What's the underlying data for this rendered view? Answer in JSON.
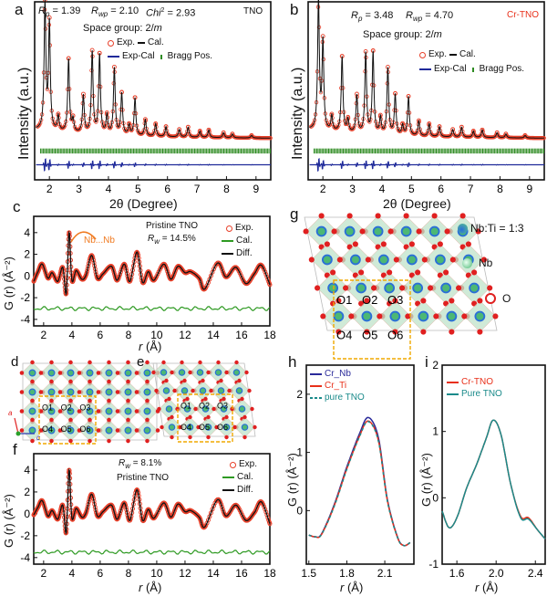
{
  "colors": {
    "exp": "#e8402a",
    "cal_black": "#111111",
    "diff_blue": "#1f2a9a",
    "bragg": "#2e8b22",
    "green": "#2e9a22",
    "cr_nb": "#2a2a9a",
    "cr_ti": "#e8301a",
    "pure": "#1a8a8a",
    "octa": "#bfe3c9",
    "oxygen": "#e02020",
    "box": "#f0a800"
  },
  "panels": {
    "a": {
      "label": "a",
      "rp": {
        "sym": "R",
        "sub": "p",
        "val": " = 1.39"
      },
      "rwp": {
        "sym": "R",
        "sub": "wp",
        "val": " = 2.10"
      },
      "chi": {
        "sym": "Chi",
        "sup": "2",
        "val": " = 2.93"
      },
      "sample": "TNO",
      "space_group": "Space group: 2/",
      "space_group_it": "m",
      "legend": [
        "Exp.",
        "Cal.",
        "Exp-Cal",
        "Bragg Pos."
      ],
      "ylabel": "Intensity (a.u.)",
      "xlabel": "2θ (Degree)"
    },
    "b": {
      "label": "b",
      "rp": {
        "sym": "R",
        "sub": "p",
        "val": " = 3.48"
      },
      "rwp": {
        "sym": "R",
        "sub": "wp",
        "val": " = 4.70"
      },
      "sample": "Cr-TNO",
      "space_group": "Space group: 2/",
      "space_group_it": "m",
      "legend": [
        "Exp.",
        "Cal.",
        "Exp-Cal",
        "Bragg Pos."
      ],
      "ylabel": "Intensity (a.u.)",
      "xlabel": "2θ (Degree)"
    },
    "c": {
      "label": "c",
      "title": "Pristine TNO",
      "rw": {
        "sym": "R",
        "sub": "w",
        "val": " = 14.5%"
      },
      "annotation": "Nb...Nb",
      "legend": [
        "Exp.",
        "Cal.",
        "Diff."
      ],
      "ylabel": "G (r) (Å⁻²)",
      "xlabel_it": "r",
      "xlabel": " (Å)"
    },
    "d": {
      "label": "d",
      "sites": [
        "O1",
        "O2",
        "O3",
        "O4",
        "O5",
        "O6"
      ],
      "axes": [
        "a",
        "c"
      ]
    },
    "e": {
      "label": "e",
      "sites": [
        "O1",
        "O2",
        "O3",
        "O4",
        "O5",
        "O6"
      ]
    },
    "f": {
      "label": "f",
      "title": "Pristine TNO",
      "rw": {
        "sym": "R",
        "sub": "w",
        "val": " = 8.1%"
      },
      "legend": [
        "Exp.",
        "Cal.",
        "Diff."
      ],
      "ylabel": "G (r) (Å⁻²)",
      "xlabel_it": "r",
      "xlabel": " (Å)"
    },
    "g": {
      "label": "g",
      "sites": [
        "O1",
        "O2",
        "O3",
        "O4",
        "O5",
        "O6"
      ],
      "legend": [
        "Nb:Ti = 1:3",
        "Nb",
        "O"
      ]
    },
    "h": {
      "label": "h",
      "legend": [
        "Cr_Nb",
        "Cr_Ti",
        "pure TNO"
      ],
      "ylabel": "G (r) (Å⁻²)",
      "xlabel_it": "r",
      "xlabel": " (Å)"
    },
    "i": {
      "label": "i",
      "legend": [
        "Cr-TNO",
        "Pure TNO"
      ],
      "ylabel": "G (r) (Å⁻²)",
      "xlabel_it": "r",
      "xlabel": " (Å)"
    }
  },
  "chart_data": [
    {
      "panel": "a",
      "type": "line",
      "xlim": [
        1.5,
        9.5
      ],
      "xticks": [
        2,
        3,
        4,
        5,
        6,
        7,
        8,
        9
      ],
      "yticks": [],
      "peaks": [
        [
          1.85,
          1.0
        ],
        [
          2.0,
          0.85
        ],
        [
          2.3,
          0.12
        ],
        [
          2.65,
          0.58
        ],
        [
          2.8,
          0.1
        ],
        [
          3.15,
          0.3
        ],
        [
          3.45,
          0.65
        ],
        [
          3.7,
          0.63
        ],
        [
          3.95,
          0.15
        ],
        [
          4.2,
          0.53
        ],
        [
          4.45,
          0.33
        ],
        [
          4.7,
          0.08
        ],
        [
          4.9,
          0.3
        ],
        [
          5.25,
          0.13
        ],
        [
          5.6,
          0.1
        ],
        [
          5.95,
          0.08
        ],
        [
          6.4,
          0.06
        ],
        [
          6.7,
          0.08
        ],
        [
          7.1,
          0.05
        ],
        [
          7.4,
          0.06
        ],
        [
          7.9,
          0.04
        ],
        [
          8.2,
          0.03
        ],
        [
          8.85,
          0.02
        ]
      ]
    },
    {
      "panel": "b",
      "type": "line",
      "xlim": [
        1.5,
        9.5
      ],
      "xticks": [
        2,
        3,
        4,
        5,
        6,
        7,
        8,
        9
      ],
      "yticks": [],
      "peaks": [
        [
          1.85,
          1.03
        ],
        [
          2.0,
          0.7
        ],
        [
          2.3,
          0.12
        ],
        [
          2.65,
          0.6
        ],
        [
          2.85,
          0.1
        ],
        [
          3.15,
          0.3
        ],
        [
          3.45,
          0.64
        ],
        [
          3.7,
          0.65
        ],
        [
          3.95,
          0.13
        ],
        [
          4.2,
          0.53
        ],
        [
          4.45,
          0.32
        ],
        [
          4.7,
          0.08
        ],
        [
          4.9,
          0.31
        ],
        [
          5.25,
          0.12
        ],
        [
          5.6,
          0.1
        ],
        [
          5.95,
          0.08
        ],
        [
          6.4,
          0.06
        ],
        [
          6.7,
          0.08
        ],
        [
          7.1,
          0.05
        ],
        [
          7.4,
          0.06
        ],
        [
          7.9,
          0.04
        ],
        [
          8.2,
          0.03
        ],
        [
          8.85,
          0.02
        ]
      ]
    },
    {
      "panel": "c",
      "type": "line",
      "xlim": [
        1.3,
        18
      ],
      "ylim": [
        -4.6,
        5.5
      ],
      "xticks": [
        2,
        4,
        6,
        8,
        10,
        12,
        14,
        16,
        18
      ],
      "yticks": [
        -4,
        -2,
        0,
        2,
        4
      ],
      "r": [
        1.3,
        1.6,
        1.9,
        2.3,
        2.6,
        3.0,
        3.35,
        3.6,
        3.8,
        4.0,
        4.3,
        4.7,
        5.0,
        5.4,
        5.8,
        6.2,
        6.8,
        7.2,
        7.7,
        8.1,
        8.6,
        9.0,
        9.4,
        9.8,
        10.5,
        11.0,
        11.5,
        12.0,
        12.4,
        13.0,
        13.4,
        14.3,
        14.9,
        15.6,
        16.3,
        16.9,
        17.4,
        18.0
      ],
      "g": [
        -0.5,
        0.4,
        1.1,
        -0.2,
        0.3,
        -0.5,
        0.8,
        -1.6,
        4.0,
        -0.4,
        0.5,
        -0.3,
        0.1,
        1.9,
        -0.2,
        0.2,
        0.9,
        -0.4,
        1.1,
        -0.5,
        2.2,
        -0.6,
        0.4,
        -0.4,
        1.1,
        -0.3,
        0.9,
        0.3,
        0.4,
        -0.2,
        -1.2,
        1.2,
        -0.1,
        0.8,
        -0.7,
        0.2,
        1.0,
        -0.8
      ],
      "lower_curve": -3.0
    },
    {
      "panel": "f",
      "type": "line",
      "xlim": [
        1.3,
        18
      ],
      "ylim": [
        -4.6,
        5.5
      ],
      "xticks": [
        2,
        4,
        6,
        8,
        10,
        12,
        14,
        16,
        18
      ],
      "yticks": [
        -4,
        -2,
        0,
        2,
        4
      ],
      "r": [
        1.3,
        1.6,
        1.9,
        2.3,
        2.6,
        3.0,
        3.35,
        3.6,
        3.8,
        4.0,
        4.3,
        4.7,
        5.0,
        5.4,
        5.8,
        6.2,
        6.8,
        7.2,
        7.7,
        8.1,
        8.6,
        9.0,
        9.4,
        9.8,
        10.5,
        11.0,
        11.5,
        12.0,
        12.4,
        13.0,
        13.4,
        14.3,
        14.9,
        15.6,
        16.3,
        16.9,
        17.4,
        18.0
      ],
      "g": [
        -0.1,
        0.6,
        1.2,
        -0.2,
        0.3,
        -0.5,
        0.8,
        -1.7,
        4.0,
        -0.4,
        0.5,
        -0.3,
        0.1,
        1.8,
        -0.2,
        0.2,
        0.8,
        -0.5,
        1.0,
        -0.6,
        2.2,
        -0.6,
        0.4,
        -0.4,
        1.0,
        -0.3,
        0.9,
        0.2,
        0.3,
        -0.3,
        -1.2,
        1.3,
        -0.2,
        0.8,
        -0.6,
        0.1,
        1.1,
        -0.9
      ],
      "lower_curve": -3.5
    },
    {
      "panel": "h",
      "type": "line",
      "xlim": [
        1.48,
        2.33
      ],
      "ylim": [
        -0.92,
        2.5
      ],
      "xticks": [
        1.5,
        1.8,
        2.1
      ],
      "yticks": [
        0,
        1,
        2
      ],
      "x": [
        1.5,
        1.55,
        1.6,
        1.7,
        1.8,
        1.9,
        1.97,
        2.05,
        2.12,
        2.2,
        2.25,
        2.3
      ],
      "series": [
        {
          "name": "Cr_Nb",
          "values": [
            -0.42,
            -0.45,
            -0.4,
            0.1,
            0.75,
            1.32,
            1.6,
            1.25,
            0.2,
            -0.45,
            -0.6,
            -0.55
          ]
        },
        {
          "name": "Cr_Ti",
          "values": [
            -0.42,
            -0.45,
            -0.41,
            0.08,
            0.72,
            1.28,
            1.54,
            1.2,
            0.18,
            -0.46,
            -0.6,
            -0.55
          ]
        },
        {
          "name": "pure TNO",
          "values": [
            -0.42,
            -0.45,
            -0.41,
            0.07,
            0.71,
            1.27,
            1.53,
            1.19,
            0.17,
            -0.46,
            -0.6,
            -0.55
          ]
        }
      ]
    },
    {
      "panel": "i",
      "type": "line",
      "xlim": [
        1.45,
        2.5
      ],
      "ylim": [
        -1,
        2
      ],
      "xticks": [
        1.6,
        2.0,
        2.4
      ],
      "yticks": [
        -1,
        0,
        1,
        2
      ],
      "x": [
        1.45,
        1.52,
        1.6,
        1.7,
        1.8,
        1.9,
        1.97,
        2.05,
        2.15,
        2.25,
        2.33,
        2.42,
        2.5
      ],
      "series": [
        {
          "name": "Cr-TNO",
          "values": [
            -0.2,
            -0.45,
            -0.3,
            0.15,
            0.5,
            0.9,
            1.17,
            0.95,
            0.2,
            -0.28,
            -0.3,
            -0.48,
            -0.62
          ]
        },
        {
          "name": "Pure TNO",
          "values": [
            -0.2,
            -0.45,
            -0.3,
            0.15,
            0.5,
            0.9,
            1.17,
            0.95,
            0.2,
            -0.3,
            -0.32,
            -0.48,
            -0.62
          ]
        }
      ]
    }
  ]
}
